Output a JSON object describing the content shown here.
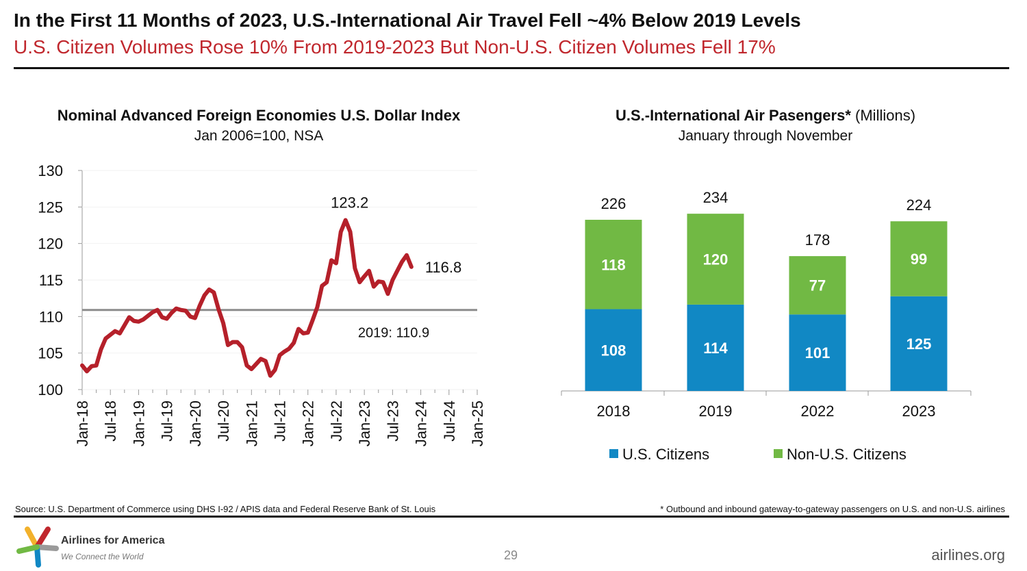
{
  "header": {
    "title": "In the First 11 Months of 2023, U.S.-International Air Travel Fell ~4% Below 2019 Levels",
    "subtitle": "U.S. Citizen Volumes Rose 10% From 2019-2023 But Non-U.S. Citizen Volumes Fell 17%"
  },
  "colors": {
    "accent_red": "#c0272d",
    "line": "#b5202a",
    "reference": "#8c8c8c",
    "us_citizens": "#1188c4",
    "non_us_citizens": "#71b944"
  },
  "chart_data": [
    {
      "type": "line",
      "title": "Nominal Advanced Foreign Economies U.S. Dollar Index",
      "subtitle": "Jan 2006=100, NSA",
      "ylim": [
        100,
        130
      ],
      "yticks": [
        "100",
        "105",
        "110",
        "115",
        "120",
        "125",
        "130"
      ],
      "xlim": [
        "Jan-18",
        "Jan-25"
      ],
      "xtick_labels": [
        "Jan-18",
        "Jul-18",
        "Jan-19",
        "Jul-19",
        "Jan-20",
        "Jul-20",
        "Jan-21",
        "Jul-21",
        "Jan-22",
        "Jul-22",
        "Jan-23",
        "Jul-23",
        "Jan-24",
        "Jul-24",
        "Jan-25"
      ],
      "start": "Jan-18",
      "values": [
        103.3,
        102.5,
        103.2,
        103.3,
        105.5,
        107.0,
        107.5,
        108.0,
        107.7,
        108.8,
        109.9,
        109.4,
        109.3,
        109.6,
        110.1,
        110.6,
        110.9,
        109.9,
        109.7,
        110.5,
        111.1,
        110.9,
        110.8,
        110.0,
        109.8,
        111.5,
        112.9,
        113.7,
        113.3,
        111.0,
        109.1,
        106.1,
        106.5,
        106.5,
        105.8,
        103.3,
        102.8,
        103.5,
        104.2,
        103.9,
        101.9,
        102.7,
        104.7,
        105.2,
        105.6,
        106.4,
        108.3,
        107.7,
        107.8,
        109.5,
        111.3,
        114.2,
        114.7,
        117.7,
        117.3,
        121.6,
        123.2,
        121.6,
        116.6,
        114.7,
        115.5,
        116.25,
        114.1,
        114.8,
        114.7,
        113.1,
        115.0,
        116.25,
        117.5,
        118.4,
        116.8
      ],
      "reference_line": {
        "value": 110.9,
        "label": "2019: 110.9"
      },
      "annotations": [
        "123.2",
        "116.8"
      ],
      "grid": false
    },
    {
      "type": "bar",
      "stacked": true,
      "title": "U.S.-International Air Pasengers*",
      "title_suffix": "(Millions)",
      "subtitle": "January through November",
      "categories": [
        "2018",
        "2019",
        "2022",
        "2023"
      ],
      "series": [
        {
          "name": "U.S. Citizens",
          "values": [
            108,
            114,
            101,
            125
          ]
        },
        {
          "name": "Non-U.S. Citizens",
          "values": [
            118,
            120,
            77,
            99
          ]
        }
      ],
      "totals": [
        226,
        234,
        178,
        224
      ],
      "legend": "bottom"
    }
  ],
  "footer": {
    "source": "Source: U.S. Department of Commerce using DHS I-92 / APIS data and Federal Reserve Bank of St. Louis",
    "note": "* Outbound and inbound gateway-to-gateway passengers on U.S. and non-U.S. airlines",
    "logo_name": "Airlines for America",
    "logo_tagline": "We Connect the World",
    "page_number": "29",
    "website": "airlines.org"
  }
}
